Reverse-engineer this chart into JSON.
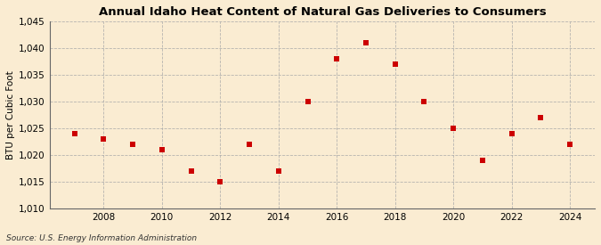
{
  "title": "Annual Idaho Heat Content of Natural Gas Deliveries to Consumers",
  "ylabel": "BTU per Cubic Foot",
  "source": "Source: U.S. Energy Information Administration",
  "background_color": "#faecd2",
  "years": [
    2007,
    2008,
    2009,
    2010,
    2011,
    2012,
    2013,
    2014,
    2015,
    2016,
    2017,
    2018,
    2019,
    2020,
    2021,
    2022,
    2023,
    2024
  ],
  "values": [
    1024,
    1023,
    1022,
    1021,
    1017,
    1015,
    1022,
    1017,
    1030,
    1038,
    1041,
    1037,
    1030,
    1025,
    1019,
    1024,
    1027,
    1022
  ],
  "marker_color": "#cc0000",
  "marker_size": 4,
  "ylim": [
    1010,
    1045
  ],
  "yticks": [
    1010,
    1015,
    1020,
    1025,
    1030,
    1035,
    1040,
    1045
  ],
  "xticks": [
    2008,
    2010,
    2012,
    2014,
    2016,
    2018,
    2020,
    2022,
    2024
  ],
  "title_fontsize": 9.5,
  "axis_fontsize": 7.5,
  "source_fontsize": 6.5
}
